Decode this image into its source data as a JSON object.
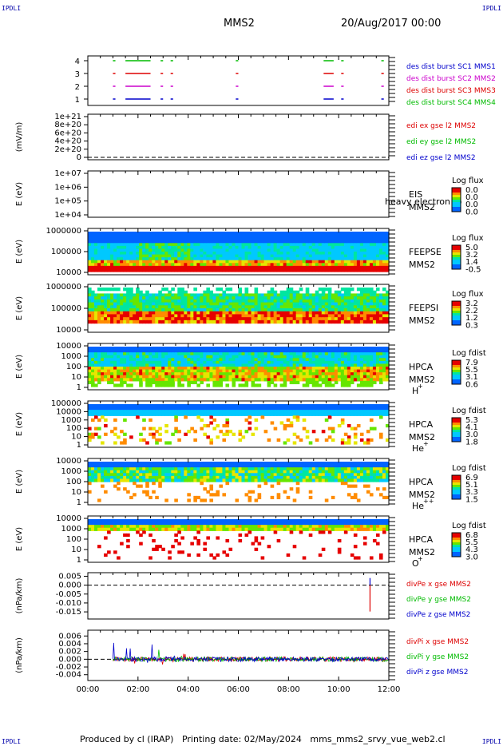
{
  "corner_labels": [
    "IPDLI",
    "IPDLI",
    "IPDLI",
    "IPDLI"
  ],
  "header": {
    "spacecraft": "MMS2",
    "date": "20/Aug/2017 00:00"
  },
  "footer": "Produced by cl (IRAP)   Printing date: 02/May/2024   mms_mms2_srvy_vue_web2.cl",
  "chart_data": [
    {
      "type": "line",
      "panel": "burst-availability",
      "ylim": [
        0.5,
        4.5
      ],
      "yticks": [
        "1",
        "2",
        "3",
        "4"
      ],
      "legend": [
        {
          "label": "des dist burst SC1 MMS1",
          "color": "#0000cc"
        },
        {
          "label": "des dist burst SC2 MMS2",
          "color": "#cc00cc"
        },
        {
          "label": "des dist burst SC3 MMS3",
          "color": "#dd0000"
        },
        {
          "label": "des dist burst SC4 MMS4",
          "color": "#00bb00"
        }
      ],
      "segments_hours": [
        [
          1.0,
          1.1
        ],
        [
          1.5,
          2.5
        ],
        [
          2.9,
          3.0
        ],
        [
          3.3,
          3.4
        ],
        [
          5.9,
          6.0
        ],
        [
          9.4,
          9.8
        ],
        [
          10.1,
          10.2
        ],
        [
          11.7,
          11.8
        ]
      ]
    },
    {
      "type": "line",
      "panel": "edi-electric-field",
      "ylabel": "(mV/m)",
      "yticks": [
        "0",
        "2e+20",
        "4e+20",
        "6e+20",
        "8e+20",
        "1e+21"
      ],
      "legend": [
        {
          "label": "edi ex gse l2 MMS2",
          "color": "#dd0000"
        },
        {
          "label": "edi ey gse l2 MMS2",
          "color": "#00bb00"
        },
        {
          "label": "edi ez gse l2 MMS2",
          "color": "#0000cc"
        }
      ],
      "values": [
        0
      ]
    },
    {
      "type": "heatmap",
      "panel": "eis",
      "ylabel": "E (eV)",
      "yticks": [
        "1e+04",
        "1e+05",
        "1e+06",
        "1e+07"
      ],
      "instrument": [
        "EIS",
        "MMS2"
      ],
      "overlay_text": "heavy electron to",
      "colorbar": {
        "title": "Log flux",
        "ticks": [
          "0.0",
          "0.0",
          "0.0",
          "0.0"
        ]
      }
    },
    {
      "type": "heatmap",
      "panel": "feepse",
      "ylabel": "E (eV)",
      "yticks": [
        "10000",
        "100000",
        "1000000"
      ],
      "instrument": [
        "FEEPSE",
        "MMS2"
      ],
      "colorbar": {
        "title": "Log flux",
        "ticks": [
          "5.0",
          "3.2",
          "1.4",
          "-0.5"
        ]
      }
    },
    {
      "type": "heatmap",
      "panel": "feepsi",
      "ylabel": "E (eV)",
      "yticks": [
        "10000",
        "100000",
        "1000000"
      ],
      "instrument": [
        "FEEPSI",
        "MMS2"
      ],
      "colorbar": {
        "title": "Log flux",
        "ticks": [
          "3.2",
          "2.2",
          "1.2",
          "0.3"
        ]
      }
    },
    {
      "type": "heatmap",
      "panel": "hpca-h",
      "ylabel": "E (eV)",
      "yticks": [
        "1",
        "10",
        "100",
        "1000",
        "10000"
      ],
      "instrument": [
        "HPCA",
        "MMS2",
        "H",
        "+"
      ],
      "colorbar": {
        "title": "Log fdist",
        "ticks": [
          "7.9",
          "5.5",
          "3.1",
          "0.6"
        ]
      }
    },
    {
      "type": "heatmap",
      "panel": "hpca-he",
      "ylabel": "E (eV)",
      "yticks": [
        "1",
        "10",
        "100",
        "1000",
        "10000",
        "100000"
      ],
      "instrument": [
        "HPCA",
        "MMS2",
        "He",
        "+"
      ],
      "colorbar": {
        "title": "Log fdist",
        "ticks": [
          "5.3",
          "4.1",
          "3.0",
          "1.8"
        ]
      }
    },
    {
      "type": "heatmap",
      "panel": "hpca-hepp",
      "ylabel": "E (eV)",
      "yticks": [
        "1",
        "10",
        "100",
        "1000",
        "10000"
      ],
      "instrument": [
        "HPCA",
        "MMS2",
        "He",
        "++"
      ],
      "colorbar": {
        "title": "Log fdist",
        "ticks": [
          "6.9",
          "5.1",
          "3.3",
          "1.5"
        ]
      }
    },
    {
      "type": "heatmap",
      "panel": "hpca-o",
      "ylabel": "E (eV)",
      "yticks": [
        "1",
        "10",
        "100",
        "1000",
        "10000"
      ],
      "instrument": [
        "HPCA",
        "MMS2",
        "O",
        "+"
      ],
      "colorbar": {
        "title": "Log fdist",
        "ticks": [
          "6.8",
          "5.5",
          "4.3",
          "3.0"
        ]
      }
    },
    {
      "type": "line",
      "panel": "div-pe",
      "ylabel": "(nPa/km)",
      "ylim": [
        -0.019,
        0.007
      ],
      "yticks": [
        "-0.015",
        "-0.010",
        "-0.005",
        "0.000",
        "0.005"
      ],
      "legend": [
        {
          "label": "divPe x gse MMS2",
          "color": "#dd0000"
        },
        {
          "label": "divPe y gse MMS2",
          "color": "#00bb00"
        },
        {
          "label": "divPe z gse MMS2",
          "color": "#0000cc"
        }
      ],
      "spikes": [
        {
          "x": 11.25,
          "y": -0.0148,
          "series": "x"
        },
        {
          "x": 11.25,
          "y": 0.004,
          "series": "z"
        }
      ]
    },
    {
      "type": "line",
      "panel": "div-pi",
      "ylabel": "(nPa/km)",
      "ylim": [
        -0.0055,
        0.0075
      ],
      "yticks": [
        "-0.004",
        "-0.002",
        "0.000",
        "0.002",
        "0.004",
        "0.006"
      ],
      "legend": [
        {
          "label": "divPi x gse MMS2",
          "color": "#dd0000"
        },
        {
          "label": "divPi y gse MMS2",
          "color": "#00bb00"
        },
        {
          "label": "divPi z gse MMS2",
          "color": "#0000cc"
        }
      ],
      "x_range_hours": [
        1.0,
        12.0
      ]
    }
  ],
  "xaxis": {
    "ticks": [
      "00:00",
      "02:00",
      "04:00",
      "06:00",
      "08:00",
      "10:00",
      "12:00"
    ],
    "range_hours": [
      0,
      12
    ]
  }
}
